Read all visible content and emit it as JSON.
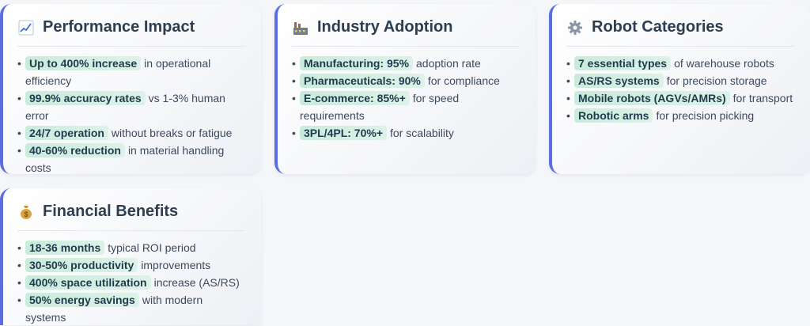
{
  "cards": [
    {
      "title": "Performance Impact",
      "icon": "chart-icon",
      "items": [
        {
          "bold": "Up to 400% increase",
          "text": "in operational efficiency"
        },
        {
          "bold": "99.9% accuracy rates",
          "text": "vs 1-3% human error"
        },
        {
          "bold": "24/7 operation",
          "text": "without breaks or fatigue"
        },
        {
          "bold": "40-60% reduction",
          "text": "in material handling costs"
        }
      ]
    },
    {
      "title": "Industry Adoption",
      "icon": "factory-icon",
      "items": [
        {
          "bold": "Manufacturing: 95%",
          "text": "adoption rate"
        },
        {
          "bold": "Pharmaceuticals: 90%",
          "text": "for compliance"
        },
        {
          "bold": "E-commerce: 85%+",
          "text": "for speed requirements"
        },
        {
          "bold": "3PL/4PL: 70%+",
          "text": "for scalability"
        }
      ]
    },
    {
      "title": "Robot Categories",
      "icon": "gear-icon",
      "items": [
        {
          "bold": "7 essential types",
          "text": "of warehouse robots"
        },
        {
          "bold": "AS/RS systems",
          "text": "for precision storage"
        },
        {
          "bold": "Mobile robots (AGVs/AMRs)",
          "text": "for transport"
        },
        {
          "bold": "Robotic arms",
          "text": "for precision picking"
        }
      ]
    },
    {
      "title": "Financial Benefits",
      "icon": "money-bag-icon",
      "items": [
        {
          "bold": "18-36 months",
          "text": "typical ROI period"
        },
        {
          "bold": "30-50% productivity",
          "text": "improvements"
        },
        {
          "bold": "400% space utilization",
          "text": "increase (AS/RS)"
        },
        {
          "bold": "50% energy savings",
          "text": "with modern systems"
        }
      ]
    }
  ]
}
